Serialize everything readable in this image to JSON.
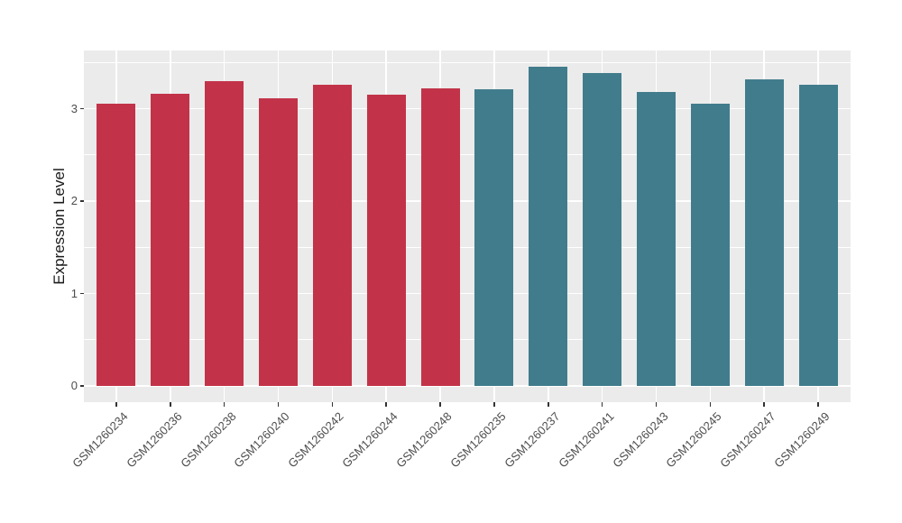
{
  "chart_data": {
    "type": "bar",
    "title": "",
    "xlabel": "",
    "ylabel": "Expression Level",
    "yticks": [
      0,
      1,
      2,
      3
    ],
    "yminorticks": [
      0.5,
      1.5,
      2.5,
      3.5
    ],
    "ylim": [
      -0.18,
      3.63
    ],
    "grid": "on",
    "legend_position": "none",
    "panel_bg": "#EBEBEB",
    "grid_color": "#FFFFFF",
    "axis_text_color": "#4D4D4D",
    "colors": {
      "red": "#C23349",
      "teal": "#417C8C"
    },
    "categories": [
      "GSM1260234",
      "GSM1260236",
      "GSM1260238",
      "GSM1260240",
      "GSM1260242",
      "GSM1260244",
      "GSM1260248",
      "GSM1260235",
      "GSM1260237",
      "GSM1260241",
      "GSM1260243",
      "GSM1260245",
      "GSM1260247",
      "GSM1260249"
    ],
    "bars": [
      {
        "label": "GSM1260234",
        "value": 3.05,
        "color_key": "red"
      },
      {
        "label": "GSM1260236",
        "value": 3.16,
        "color_key": "red"
      },
      {
        "label": "GSM1260238",
        "value": 3.3,
        "color_key": "red"
      },
      {
        "label": "GSM1260240",
        "value": 3.11,
        "color_key": "red"
      },
      {
        "label": "GSM1260242",
        "value": 3.26,
        "color_key": "red"
      },
      {
        "label": "GSM1260244",
        "value": 3.15,
        "color_key": "red"
      },
      {
        "label": "GSM1260248",
        "value": 3.22,
        "color_key": "red"
      },
      {
        "label": "GSM1260235",
        "value": 3.21,
        "color_key": "teal"
      },
      {
        "label": "GSM1260237",
        "value": 3.45,
        "color_key": "teal"
      },
      {
        "label": "GSM1260241",
        "value": 3.39,
        "color_key": "teal"
      },
      {
        "label": "GSM1260243",
        "value": 3.18,
        "color_key": "teal"
      },
      {
        "label": "GSM1260245",
        "value": 3.05,
        "color_key": "teal"
      },
      {
        "label": "GSM1260247",
        "value": 3.32,
        "color_key": "teal"
      },
      {
        "label": "GSM1260249",
        "value": 3.26,
        "color_key": "teal"
      }
    ]
  }
}
